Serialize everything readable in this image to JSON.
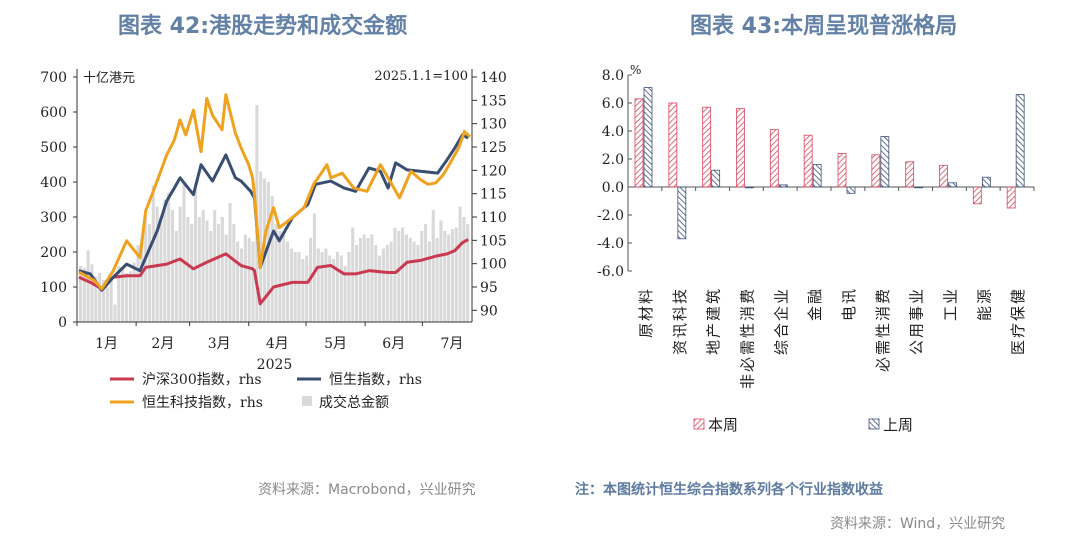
{
  "left": {
    "title": "图表 42:港股走势和成交金额",
    "source": "资料来源：Macrobond，兴业研究"
  },
  "right": {
    "title": "图表 43:本周呈现普涨格局",
    "note": "注：本图统计恒生综合指数系列各个行业指数收益",
    "source": "资料来源：Wind，兴业研究"
  },
  "chart_data": [
    {
      "type": "line",
      "left_unit": "十亿港元",
      "right_unit": "2025.1.1=100",
      "xlabel": "2025",
      "x_ticks": [
        "1月",
        "2月",
        "3月",
        "4月",
        "5月",
        "6月",
        "7月"
      ],
      "ylim_left": [
        0,
        700
      ],
      "yticks_left": [
        "0",
        "100",
        "200",
        "300",
        "400",
        "500",
        "600",
        "700"
      ],
      "ylim_right": [
        87.5,
        140
      ],
      "yticks_right": [
        "90",
        "95",
        "100",
        "105",
        "110",
        "115",
        "120",
        "125",
        "130",
        "135",
        "140"
      ],
      "legend_position": "bottom",
      "series": [
        {
          "name": "沪深300指数，rhs",
          "color": "#c9394f",
          "axis": "right",
          "points": [
            [
              "01-02",
              97.1
            ],
            [
              "01-08",
              96
            ],
            [
              "01-14",
              94.6
            ],
            [
              "01-20",
              97.1
            ],
            [
              "01-27",
              97.4
            ],
            [
              "02-03",
              97.4
            ],
            [
              "02-06",
              99.2
            ],
            [
              "02-17",
              99.9
            ],
            [
              "02-24",
              101
            ],
            [
              "03-03",
              98.9
            ],
            [
              "03-10",
              100.3
            ],
            [
              "03-20",
              102.1
            ],
            [
              "03-28",
              99.6
            ],
            [
              "04-03",
              98.9
            ],
            [
              "04-04",
              98.5
            ],
            [
              "04-07",
              91.4
            ],
            [
              "04-14",
              95
            ],
            [
              "04-24",
              96
            ],
            [
              "05-02",
              96
            ],
            [
              "05-07",
              99.2
            ],
            [
              "05-14",
              99.6
            ],
            [
              "05-21",
              97.8
            ],
            [
              "05-27",
              97.8
            ],
            [
              "06-03",
              98.5
            ],
            [
              "06-13",
              98.1
            ],
            [
              "06-17",
              98.1
            ],
            [
              "06-23",
              100.3
            ],
            [
              "06-30",
              100.7
            ],
            [
              "07-09",
              101.7
            ],
            [
              "07-14",
              102.1
            ],
            [
              "07-18",
              102.8
            ],
            [
              "07-22",
              104.5
            ],
            [
              "07-25",
              105.2
            ]
          ]
        },
        {
          "name": "恒生指数，rhs",
          "color": "#3a4e72",
          "axis": "right",
          "points": [
            [
              "01-02",
              98.5
            ],
            [
              "01-08",
              97.8
            ],
            [
              "01-14",
              94.3
            ],
            [
              "01-20",
              97.1
            ],
            [
              "01-27",
              99.9
            ],
            [
              "02-03",
              98.5
            ],
            [
              "02-06",
              101.3
            ],
            [
              "02-12",
              107
            ],
            [
              "02-17",
              113.4
            ],
            [
              "02-21",
              116.2
            ],
            [
              "02-24",
              118.4
            ],
            [
              "03-03",
              114.8
            ],
            [
              "03-07",
              121.2
            ],
            [
              "03-13",
              117.7
            ],
            [
              "03-20",
              123.3
            ],
            [
              "03-25",
              118.4
            ],
            [
              "03-28",
              117.7
            ],
            [
              "04-02",
              115.5
            ],
            [
              "04-04",
              114.1
            ],
            [
              "04-07",
              99.2
            ],
            [
              "04-14",
              107
            ],
            [
              "04-17",
              104.9
            ],
            [
              "04-24",
              109.9
            ],
            [
              "05-02",
              112.7
            ],
            [
              "05-06",
              117
            ],
            [
              "05-14",
              117.7
            ],
            [
              "05-21",
              116.2
            ],
            [
              "05-27",
              115.5
            ],
            [
              "06-03",
              120.5
            ],
            [
              "06-09",
              119.8
            ],
            [
              "06-13",
              116.2
            ],
            [
              "06-17",
              121.6
            ],
            [
              "06-23",
              120.1
            ],
            [
              "06-30",
              119.8
            ],
            [
              "07-09",
              119.4
            ],
            [
              "07-14",
              122.3
            ],
            [
              "07-18",
              124.8
            ],
            [
              "07-22",
              127.6
            ],
            [
              "07-25",
              126.9
            ]
          ]
        },
        {
          "name": "恒生科技指数，rhs",
          "color": "#f0a21e",
          "axis": "right",
          "points": [
            [
              "01-02",
              98.2
            ],
            [
              "01-10",
              96.4
            ],
            [
              "01-14",
              94.6
            ],
            [
              "01-20",
              98.5
            ],
            [
              "01-27",
              104.9
            ],
            [
              "02-03",
              101.3
            ],
            [
              "02-06",
              111.3
            ],
            [
              "02-12",
              117.7
            ],
            [
              "02-17",
              123.3
            ],
            [
              "02-21",
              126.5
            ],
            [
              "02-24",
              130.8
            ],
            [
              "02-27",
              127.6
            ],
            [
              "03-03",
              132.9
            ],
            [
              "03-07",
              124
            ],
            [
              "03-10",
              135.4
            ],
            [
              "03-13",
              131.8
            ],
            [
              "03-18",
              128.7
            ],
            [
              "03-20",
              136.2
            ],
            [
              "03-25",
              128
            ],
            [
              "03-28",
              124.8
            ],
            [
              "04-01",
              121.2
            ],
            [
              "04-03",
              118.4
            ],
            [
              "04-04",
              114.8
            ],
            [
              "04-07",
              99.2
            ],
            [
              "04-10",
              107
            ],
            [
              "04-14",
              112
            ],
            [
              "04-17",
              107.7
            ],
            [
              "04-24",
              109.9
            ],
            [
              "04-30",
              112
            ],
            [
              "05-05",
              117
            ],
            [
              "05-12",
              121.2
            ],
            [
              "05-14",
              118.4
            ],
            [
              "05-20",
              119.4
            ],
            [
              "05-26",
              116.2
            ],
            [
              "06-02",
              115.5
            ],
            [
              "06-09",
              121.2
            ],
            [
              "06-13",
              118.4
            ],
            [
              "06-19",
              114.1
            ],
            [
              "06-25",
              119.8
            ],
            [
              "06-30",
              118
            ],
            [
              "07-04",
              117
            ],
            [
              "07-08",
              117.3
            ],
            [
              "07-12",
              119.1
            ],
            [
              "07-16",
              121.9
            ],
            [
              "07-20",
              124.8
            ],
            [
              "07-23",
              128.3
            ],
            [
              "07-26",
              127.2
            ]
          ]
        }
      ],
      "bars": {
        "name": "成交总金额",
        "color": "#d9d9d9",
        "axis": "left",
        "start": "01-02",
        "end": "07-26",
        "values": [
          160,
          155,
          205,
          165,
          130,
          140,
          120,
          100,
          130,
          50,
          160,
          150,
          140,
          145,
          170,
          220,
          240,
          300,
          280,
          390,
          330,
          290,
          350,
          370,
          320,
          260,
          330,
          400,
          300,
          280,
          380,
          300,
          320,
          290,
          260,
          320,
          280,
          300,
          250,
          340,
          280,
          230,
          210,
          250,
          240,
          230,
          620,
          430,
          410,
          400,
          360,
          280,
          260,
          250,
          230,
          210,
          200,
          200,
          180,
          190,
          240,
          310,
          210,
          200,
          210,
          190,
          180,
          200,
          190,
          160,
          200,
          270,
          220,
          240,
          250,
          240,
          250,
          220,
          190,
          210,
          220,
          230,
          270,
          260,
          270,
          250,
          240,
          230,
          220,
          260,
          280,
          230,
          320,
          240,
          290,
          260,
          250,
          265,
          270,
          330,
          300,
          280
        ]
      }
    },
    {
      "type": "bar",
      "ylabel": "%",
      "ylim": [
        -6,
        8
      ],
      "yticks": [
        "-6.0",
        "-4.0",
        "-2.0",
        "0.0",
        "2.0",
        "4.0",
        "6.0",
        "8.0"
      ],
      "categories": [
        "原材料",
        "资讯科技",
        "地产建筑",
        "非必需性消费",
        "综合企业",
        "金融",
        "电讯",
        "必需性消费",
        "公用事业",
        "工业",
        "能源",
        "医疗保健"
      ],
      "legend_position": "bottom",
      "series": [
        {
          "name": "本周",
          "color": "#d9475d",
          "values": [
            6.3,
            6.0,
            5.7,
            5.6,
            4.1,
            3.7,
            2.4,
            2.3,
            1.8,
            1.55,
            -1.2,
            -1.5
          ]
        },
        {
          "name": "上周",
          "color": "#3d5078",
          "values": [
            7.1,
            -3.7,
            1.2,
            0.0,
            0.15,
            1.6,
            -0.45,
            3.6,
            -0.05,
            0.3,
            0.7,
            6.6
          ]
        }
      ]
    }
  ]
}
